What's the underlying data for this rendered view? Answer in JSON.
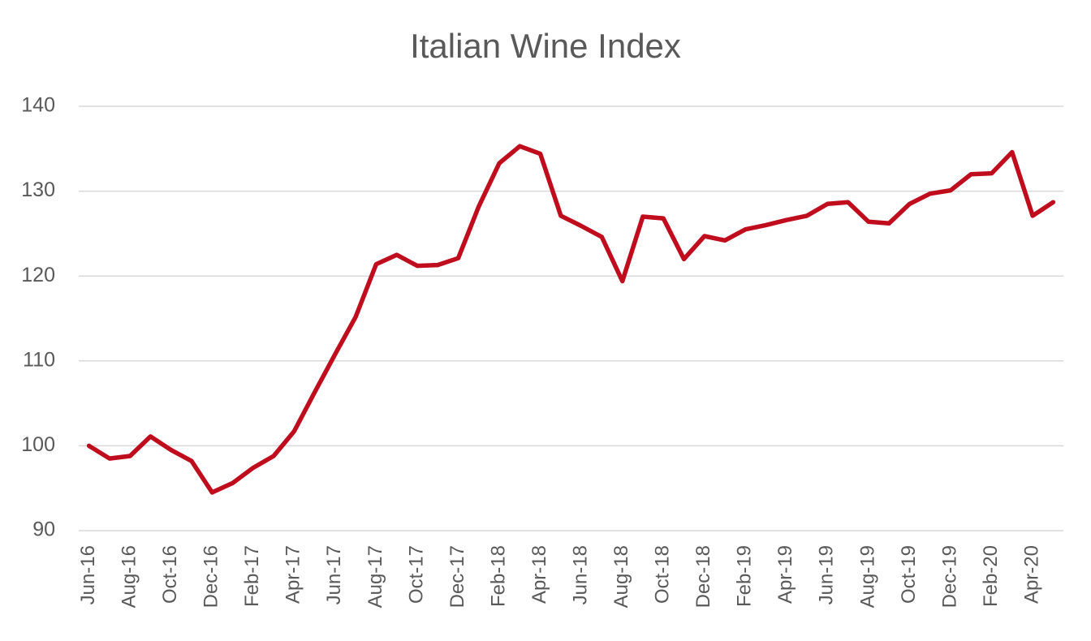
{
  "chart_data": {
    "type": "line",
    "title": "Italian Wine Index",
    "categories": [
      "Jun-16",
      null,
      "Aug-16",
      null,
      "Oct-16",
      null,
      "Dec-16",
      null,
      "Feb-17",
      null,
      "Apr-17",
      null,
      "Jun-17",
      null,
      "Aug-17",
      null,
      "Oct-17",
      null,
      "Dec-17",
      null,
      "Feb-18",
      null,
      "Apr-18",
      null,
      "Jun-18",
      null,
      "Aug-18",
      null,
      "Oct-18",
      null,
      "Dec-18",
      null,
      "Feb-19",
      null,
      "Apr-19",
      null,
      "Jun-19",
      null,
      "Aug-19",
      null,
      "Oct-19",
      null,
      "Dec-19",
      null,
      "Feb-20",
      null,
      "Apr-20",
      null
    ],
    "values": [
      100,
      98.5,
      98.8,
      101.1,
      99.5,
      98.2,
      94.5,
      95.6,
      97.4,
      98.8,
      101.7,
      106.3,
      110.8,
      115.2,
      121.4,
      122.5,
      121.2,
      121.3,
      122.1,
      128.2,
      133.3,
      135.3,
      134.4,
      127.1,
      125.9,
      124.6,
      119.4,
      127.0,
      126.8,
      122.0,
      124.7,
      124.2,
      125.5,
      126.0,
      126.6,
      127.1,
      128.5,
      128.7,
      126.4,
      126.2,
      128.5,
      129.7,
      130.1,
      132.0,
      132.1,
      134.6,
      127.1,
      128.7
    ],
    "color": "#c00d1e",
    "ylim": [
      90,
      140
    ],
    "yticks": [
      90,
      100,
      110,
      120,
      130,
      140
    ],
    "grid": true
  }
}
